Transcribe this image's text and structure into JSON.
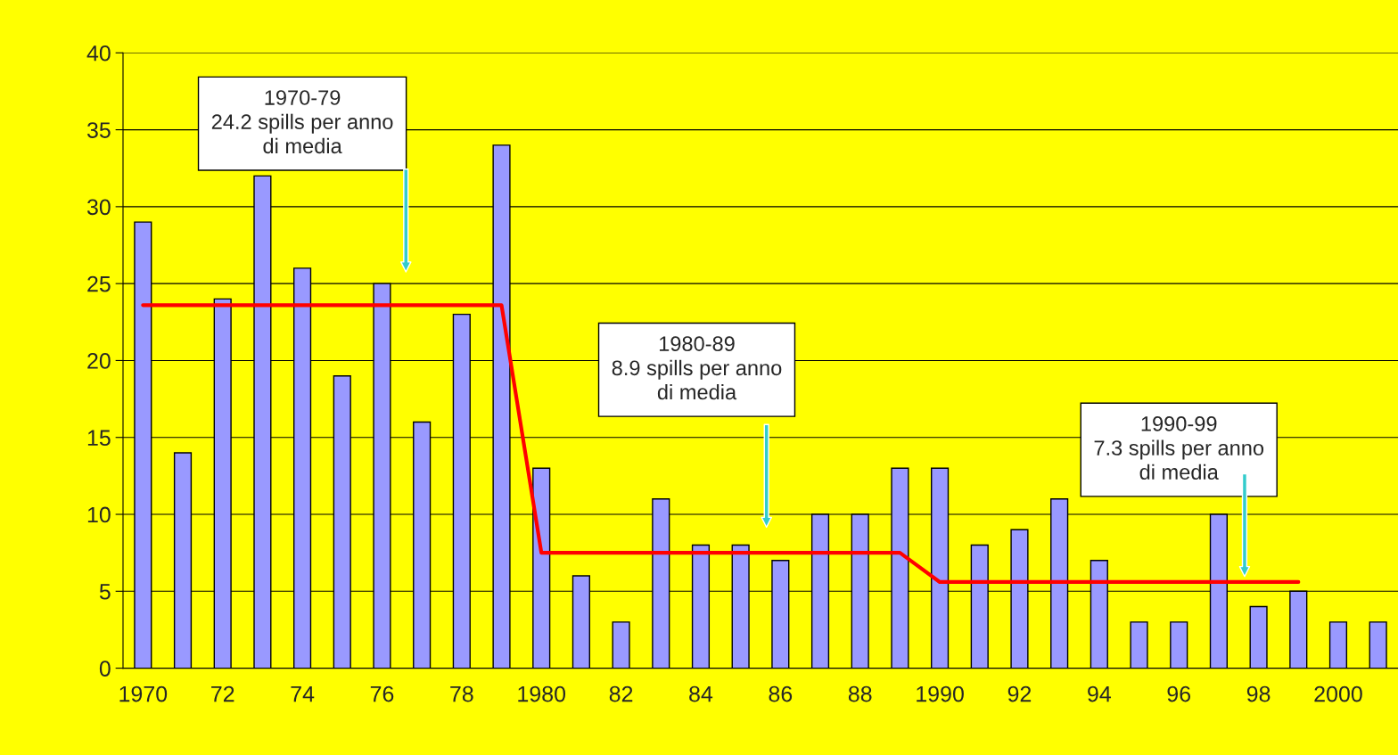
{
  "chart_data": {
    "type": "bar",
    "categories": [
      "1970",
      null,
      "72",
      null,
      "74",
      null,
      "76",
      null,
      "78",
      null,
      "1980",
      null,
      "82",
      null,
      "84",
      null,
      "86",
      null,
      "88",
      null,
      "1990",
      null,
      "92",
      null,
      "94",
      null,
      "96",
      null,
      "98",
      null,
      "2000",
      null
    ],
    "series": [
      {
        "color": "#9999ff",
        "values": [
          29,
          14,
          24,
          32,
          26,
          19,
          25,
          16,
          23,
          34,
          13,
          6,
          3,
          11,
          8,
          8,
          7,
          10,
          10,
          13,
          13,
          8,
          9,
          11,
          7,
          3,
          3,
          10,
          4,
          5,
          3,
          3
        ]
      },
      {
        "type": "line",
        "color": "#ff0000",
        "values": [
          23.6,
          23.6,
          23.6,
          23.6,
          23.6,
          23.6,
          23.6,
          23.6,
          23.6,
          23.6,
          7.5,
          7.5,
          7.5,
          7.5,
          7.5,
          7.5,
          7.5,
          7.5,
          7.5,
          7.5,
          5.6,
          5.6,
          5.6,
          5.6,
          5.6,
          5.6,
          5.6,
          5.6,
          5.6,
          5.6,
          null,
          null
        ]
      }
    ],
    "annotations": [
      "1970-79\n24.2 spills per anno\ndi media",
      "1980-89\n8.9 spills per anno\ndi media",
      "1990-99\n7.3 spills per anno\ndi media"
    ],
    "ylim": [
      0,
      40
    ],
    "yticks": [
      0,
      5,
      10,
      15,
      20,
      25,
      30,
      35,
      40
    ],
    "grid": "y"
  }
}
